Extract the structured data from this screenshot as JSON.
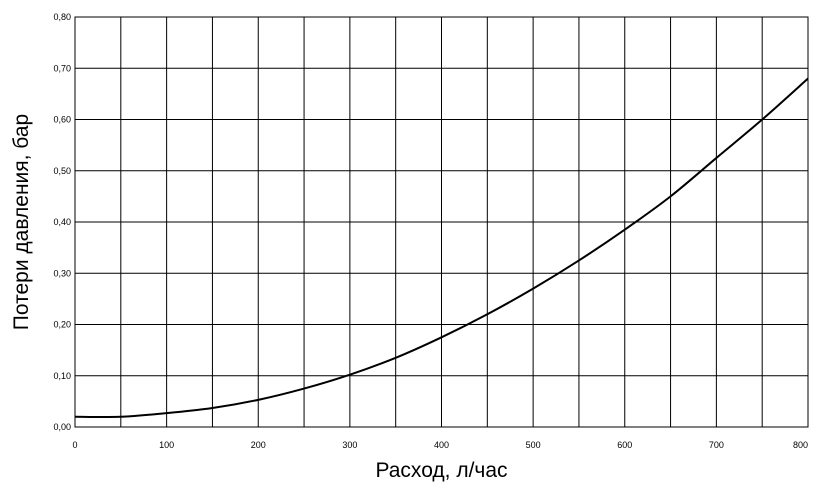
{
  "chart_data": {
    "type": "line",
    "title": "",
    "xlabel": "Расход, л/час",
    "ylabel": "Потери давления, бар",
    "xlim": [
      0,
      800
    ],
    "ylim": [
      0,
      0.8
    ],
    "x_ticks": [
      0,
      50,
      100,
      150,
      200,
      250,
      300,
      350,
      400,
      450,
      500,
      550,
      600,
      650,
      700,
      750,
      800
    ],
    "x_tick_labels": [
      "0",
      "100",
      "200",
      "300",
      "400",
      "500",
      "600",
      "700",
      "800"
    ],
    "x_tick_label_values": [
      0,
      100,
      200,
      300,
      400,
      500,
      600,
      700,
      800
    ],
    "y_ticks": [
      0,
      0.1,
      0.2,
      0.3,
      0.4,
      0.5,
      0.6,
      0.7,
      0.8
    ],
    "y_tick_labels": [
      "0,00",
      "0,10",
      "0,20",
      "0,30",
      "0,40",
      "0,50",
      "0,60",
      "0,70",
      "0,80"
    ],
    "grid": true,
    "legend": "none",
    "line_color": "#000000",
    "series": [
      {
        "x": [
          0,
          50,
          100,
          150,
          200,
          250,
          300,
          350,
          400,
          450,
          500,
          550,
          600,
          650,
          700,
          750,
          800
        ],
        "values": [
          0.02,
          0.02,
          0.027,
          0.037,
          0.053,
          0.075,
          0.102,
          0.135,
          0.175,
          0.22,
          0.27,
          0.325,
          0.385,
          0.45,
          0.525,
          0.6,
          0.68
        ]
      }
    ]
  }
}
